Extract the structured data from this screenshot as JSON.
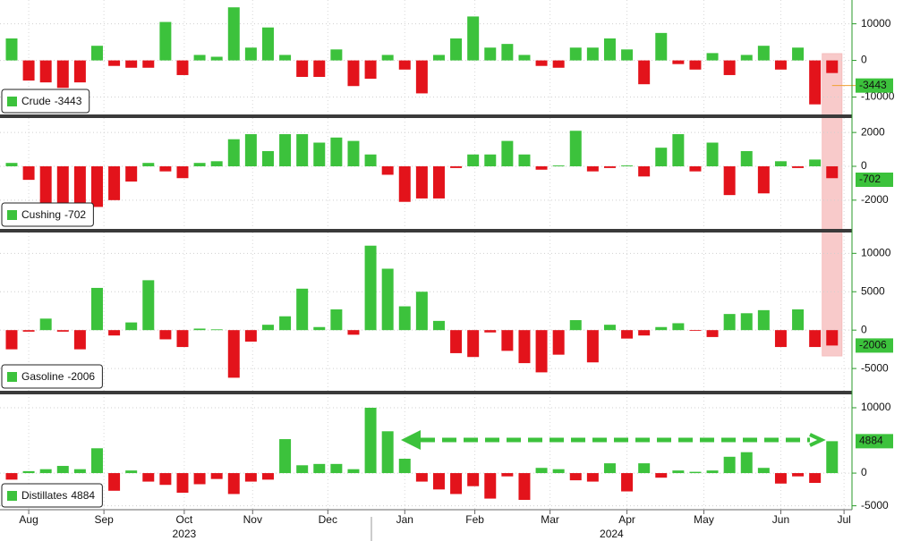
{
  "chart_data": [
    {
      "type": "bar",
      "name": "Crude",
      "positive_color": "#3cc23c",
      "negative_color": "#e3131b",
      "grid": true,
      "ylim": [
        -15000,
        16500
      ],
      "yticks": [
        -10000,
        0,
        10000
      ],
      "values": [
        6000,
        -5500,
        -6000,
        -7500,
        -6000,
        4000,
        -1500,
        -2000,
        -2000,
        10500,
        -4000,
        1500,
        1000,
        14500,
        3500,
        9000,
        1500,
        -4500,
        -4500,
        3000,
        -7000,
        -5000,
        1500,
        -2500,
        -9000,
        1500,
        6000,
        12000,
        3500,
        4500,
        1500,
        -1500,
        -2000,
        3500,
        3500,
        6000,
        3000,
        -6500,
        7500,
        -1000,
        -2500,
        2000,
        -4000,
        1500,
        4000,
        -2500,
        3500,
        -12000,
        -3443
      ]
    },
    {
      "type": "bar",
      "name": "Cushing",
      "positive_color": "#3cc23c",
      "negative_color": "#e3131b",
      "grid": true,
      "ylim": [
        -3700,
        2800
      ],
      "yticks": [
        -2000,
        0,
        2000
      ],
      "values": [
        200,
        -800,
        -3000,
        -2300,
        -2400,
        -2400,
        -2000,
        -900,
        200,
        -300,
        -700,
        200,
        300,
        1600,
        1900,
        900,
        1900,
        1900,
        1400,
        1700,
        1500,
        700,
        -500,
        -2100,
        -1900,
        -1900,
        -100,
        700,
        700,
        1500,
        700,
        -200,
        50,
        2100,
        -300,
        -100,
        50,
        -600,
        1100,
        1900,
        -300,
        1400,
        -1700,
        900,
        -1600,
        300,
        -100,
        400,
        -702
      ]
    },
    {
      "type": "bar",
      "name": "Gasoline",
      "positive_color": "#3cc23c",
      "negative_color": "#e3131b",
      "grid": true,
      "ylim": [
        -7900,
        12600
      ],
      "yticks": [
        -5000,
        0,
        5000,
        10000
      ],
      "values": [
        -2500,
        -200,
        1500,
        -200,
        -2500,
        5500,
        -700,
        1000,
        6500,
        -1200,
        -2200,
        200,
        100,
        -6200,
        -1500,
        700,
        1800,
        5400,
        400,
        2700,
        -600,
        11000,
        8000,
        3100,
        5000,
        1200,
        -3000,
        -3500,
        -300,
        -2700,
        -4300,
        -5500,
        -3200,
        1300,
        -4200,
        700,
        -1100,
        -700,
        400,
        900,
        -100,
        -900,
        2100,
        2200,
        2600,
        -2200,
        2700,
        -2200,
        -2006
      ]
    },
    {
      "type": "bar",
      "name": "Distillates",
      "positive_color": "#3cc23c",
      "negative_color": "#e3131b",
      "grid": true,
      "ylim": [
        -5600,
        12050
      ],
      "yticks": [
        -5000,
        0,
        10000
      ],
      "values": [
        -1000,
        300,
        600,
        1100,
        600,
        3800,
        -2700,
        400,
        -1300,
        -1800,
        -3000,
        -1700,
        -900,
        -3200,
        -1300,
        -1000,
        5200,
        1200,
        1400,
        1400,
        600,
        10000,
        6400,
        2200,
        -1300,
        -2500,
        -3200,
        -2000,
        -3900,
        -500,
        -4100,
        800,
        600,
        -1100,
        -1300,
        1500,
        -2800,
        1500,
        -700,
        400,
        200,
        400,
        2500,
        3200,
        800,
        -1600,
        -500,
        -1500,
        4884
      ]
    }
  ],
  "x_axis": {
    "xlim": [
      -0.68,
      49.06
    ],
    "xticks": [
      {
        "value": 1.0,
        "label": "Aug"
      },
      {
        "value": 5.4,
        "label": "Sep"
      },
      {
        "value": 10.1,
        "label": "Oct"
      },
      {
        "value": 14.1,
        "label": "Nov"
      },
      {
        "value": 18.5,
        "label": "Dec"
      },
      {
        "value": 23.0,
        "label": "Jan"
      },
      {
        "value": 27.1,
        "label": "Feb"
      },
      {
        "value": 31.5,
        "label": "Mar"
      },
      {
        "value": 36.0,
        "label": "Apr"
      },
      {
        "value": 40.5,
        "label": "May"
      },
      {
        "value": 45.0,
        "label": "Jun"
      },
      {
        "value": 48.7,
        "label": "Jul"
      }
    ],
    "year_ticks": [
      {
        "value": 10.1,
        "label": "2023"
      },
      {
        "value": 35.1,
        "label": "2024"
      }
    ]
  }
}
